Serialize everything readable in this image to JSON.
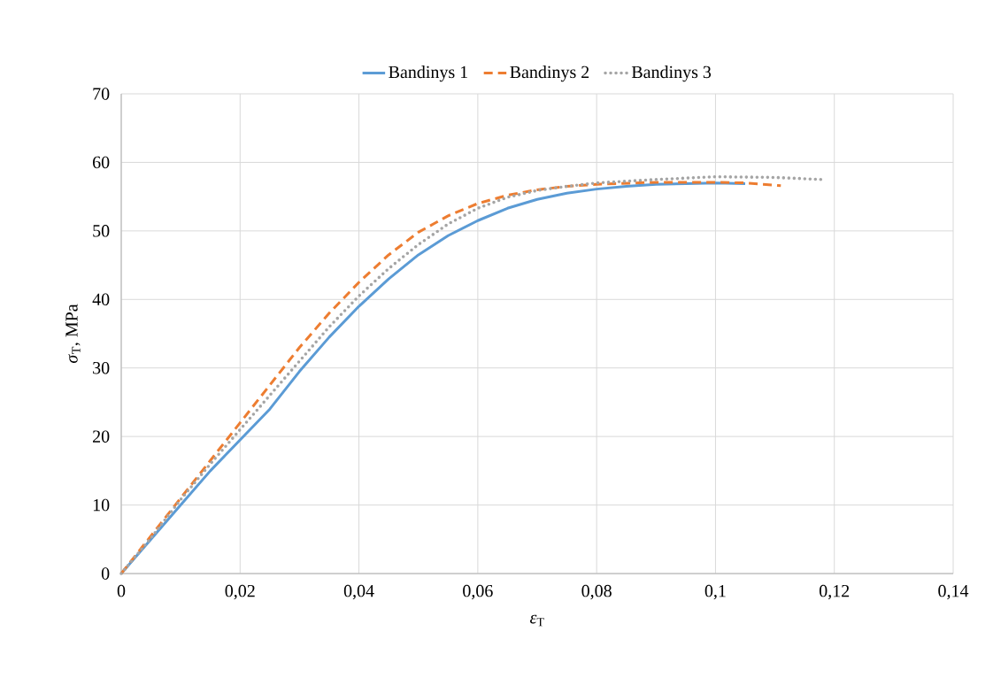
{
  "chart_data": {
    "type": "line",
    "xlabel": "*ε*$_{T}$",
    "ylabel": "*σ*$_{T}$, MPa",
    "xlim": [
      0,
      0.14
    ],
    "ylim": [
      0,
      70
    ],
    "xticks": [
      0,
      {
        "value": 0.02,
        "label": "0,02"
      },
      {
        "value": 0.04,
        "label": "0,04"
      },
      {
        "value": 0.06,
        "label": "0,06"
      },
      {
        "value": 0.08,
        "label": "0,08"
      },
      {
        "value": 0.1,
        "label": "0,1"
      },
      {
        "value": 0.12,
        "label": "0,12"
      },
      {
        "value": 0.14,
        "label": "0,14"
      }
    ],
    "yticks": [
      0,
      10,
      20,
      30,
      40,
      50,
      60,
      70
    ],
    "grid": true,
    "legend": "top",
    "marker": "none",
    "series": [
      {
        "name": "Bandinys 1",
        "color": "#5b9bd5",
        "line_style": "solid",
        "x": [
          0,
          0.005,
          0.01,
          0.015,
          0.02,
          0.025,
          0.03,
          0.035,
          0.04,
          0.045,
          0.05,
          0.055,
          0.06,
          0.065,
          0.07,
          0.075,
          0.08,
          0.085,
          0.09,
          0.095,
          0.1,
          0.105
        ],
        "values": [
          0,
          5,
          10,
          15,
          19.5,
          24,
          29.5,
          34.5,
          39,
          43,
          46.5,
          49.3,
          51.5,
          53.3,
          54.6,
          55.5,
          56.1,
          56.5,
          56.8,
          56.9,
          57,
          56.9
        ]
      },
      {
        "name": "Bandinys 2",
        "color": "#ed7d31",
        "line_style": "dashed",
        "x": [
          0,
          0.005,
          0.01,
          0.015,
          0.02,
          0.025,
          0.03,
          0.035,
          0.04,
          0.045,
          0.05,
          0.055,
          0.06,
          0.065,
          0.07,
          0.075,
          0.08,
          0.09,
          0.1,
          0.105,
          0.111
        ],
        "values": [
          0,
          5.5,
          11,
          16.5,
          22,
          27.5,
          33,
          38,
          42.5,
          46.5,
          49.8,
          52.2,
          54,
          55.2,
          56,
          56.5,
          56.8,
          57.1,
          57.1,
          57,
          56.6
        ]
      },
      {
        "name": "Bandinys 3",
        "color": "#a5a5a5",
        "line_style": "dotted",
        "x": [
          0,
          0.005,
          0.01,
          0.015,
          0.02,
          0.025,
          0.03,
          0.035,
          0.04,
          0.045,
          0.05,
          0.055,
          0.06,
          0.065,
          0.07,
          0.075,
          0.08,
          0.09,
          0.1,
          0.11,
          0.118
        ],
        "values": [
          0,
          5.2,
          10.8,
          16,
          21,
          26,
          31,
          36,
          40.5,
          44.5,
          48,
          51,
          53.3,
          54.9,
          55.9,
          56.5,
          57,
          57.5,
          57.9,
          57.8,
          57.5
        ]
      }
    ]
  }
}
